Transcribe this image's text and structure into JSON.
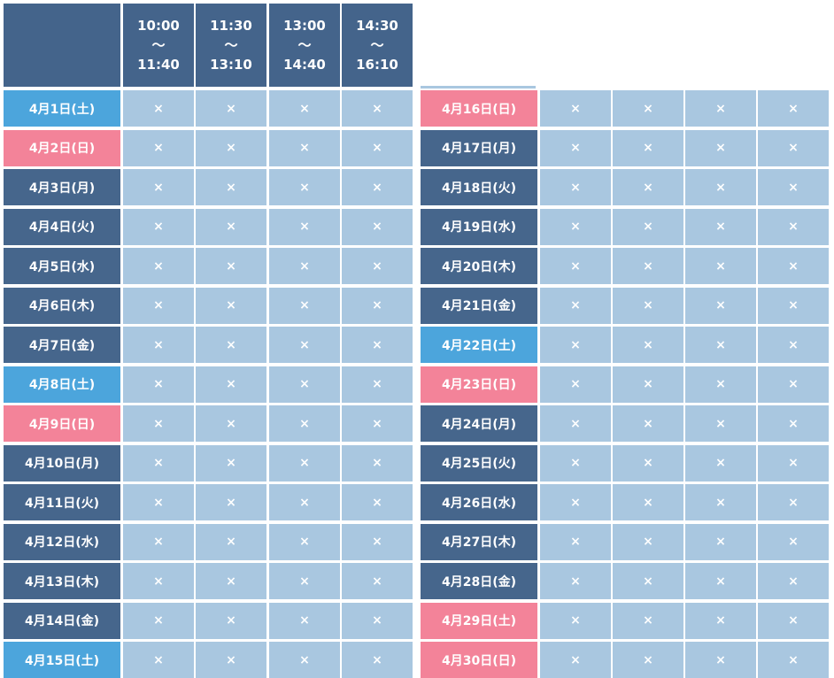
{
  "colors": {
    "header": "#3c5d86",
    "weekday": "#3c5d86",
    "saturday": "#42a0da",
    "holiday": "#f27c93",
    "slot": "#a9c7e0"
  },
  "time_slots": [
    {
      "start": "10:00",
      "sep": "〜",
      "end": "11:40"
    },
    {
      "start": "11:30",
      "sep": "〜",
      "end": "13:10"
    },
    {
      "start": "13:00",
      "sep": "〜",
      "end": "14:40"
    },
    {
      "start": "14:30",
      "sep": "〜",
      "end": "16:10"
    }
  ],
  "left_table": {
    "dates": [
      {
        "label": "4月1日(土)",
        "type": "saturday",
        "slots": [
          "×",
          "×",
          "×",
          "×"
        ]
      },
      {
        "label": "4月2日(日)",
        "type": "holiday",
        "slots": [
          "×",
          "×",
          "×",
          "×"
        ]
      },
      {
        "label": "4月3日(月)",
        "type": "weekday",
        "slots": [
          "×",
          "×",
          "×",
          "×"
        ]
      },
      {
        "label": "4月4日(火)",
        "type": "weekday",
        "slots": [
          "×",
          "×",
          "×",
          "×"
        ]
      },
      {
        "label": "4月5日(水)",
        "type": "weekday",
        "slots": [
          "×",
          "×",
          "×",
          "×"
        ]
      },
      {
        "label": "4月6日(木)",
        "type": "weekday",
        "slots": [
          "×",
          "×",
          "×",
          "×"
        ]
      },
      {
        "label": "4月7日(金)",
        "type": "weekday",
        "slots": [
          "×",
          "×",
          "×",
          "×"
        ]
      },
      {
        "label": "4月8日(土)",
        "type": "saturday",
        "slots": [
          "×",
          "×",
          "×",
          "×"
        ]
      },
      {
        "label": "4月9日(日)",
        "type": "holiday",
        "slots": [
          "×",
          "×",
          "×",
          "×"
        ]
      },
      {
        "label": "4月10日(月)",
        "type": "weekday",
        "slots": [
          "×",
          "×",
          "×",
          "×"
        ]
      },
      {
        "label": "4月11日(火)",
        "type": "weekday",
        "slots": [
          "×",
          "×",
          "×",
          "×"
        ]
      },
      {
        "label": "4月12日(水)",
        "type": "weekday",
        "slots": [
          "×",
          "×",
          "×",
          "×"
        ]
      },
      {
        "label": "4月13日(木)",
        "type": "weekday",
        "slots": [
          "×",
          "×",
          "×",
          "×"
        ]
      },
      {
        "label": "4月14日(金)",
        "type": "weekday",
        "slots": [
          "×",
          "×",
          "×",
          "×"
        ]
      },
      {
        "label": "4月15日(土)",
        "type": "saturday",
        "slots": [
          "×",
          "×",
          "×",
          "×"
        ]
      }
    ]
  },
  "right_table": {
    "dates": [
      {
        "label": "4月16日(日)",
        "type": "holiday",
        "slots": [
          "×",
          "×",
          "×",
          "×"
        ]
      },
      {
        "label": "4月17日(月)",
        "type": "weekday",
        "slots": [
          "×",
          "×",
          "×",
          "×"
        ]
      },
      {
        "label": "4月18日(火)",
        "type": "weekday",
        "slots": [
          "×",
          "×",
          "×",
          "×"
        ]
      },
      {
        "label": "4月19日(水)",
        "type": "weekday",
        "slots": [
          "×",
          "×",
          "×",
          "×"
        ]
      },
      {
        "label": "4月20日(木)",
        "type": "weekday",
        "slots": [
          "×",
          "×",
          "×",
          "×"
        ]
      },
      {
        "label": "4月21日(金)",
        "type": "weekday",
        "slots": [
          "×",
          "×",
          "×",
          "×"
        ]
      },
      {
        "label": "4月22日(土)",
        "type": "saturday",
        "slots": [
          "×",
          "×",
          "×",
          "×"
        ]
      },
      {
        "label": "4月23日(日)",
        "type": "holiday",
        "slots": [
          "×",
          "×",
          "×",
          "×"
        ]
      },
      {
        "label": "4月24日(月)",
        "type": "weekday",
        "slots": [
          "×",
          "×",
          "×",
          "×"
        ]
      },
      {
        "label": "4月25日(火)",
        "type": "weekday",
        "slots": [
          "×",
          "×",
          "×",
          "×"
        ]
      },
      {
        "label": "4月26日(水)",
        "type": "weekday",
        "slots": [
          "×",
          "×",
          "×",
          "×"
        ]
      },
      {
        "label": "4月27日(木)",
        "type": "weekday",
        "slots": [
          "×",
          "×",
          "×",
          "×"
        ]
      },
      {
        "label": "4月28日(金)",
        "type": "weekday",
        "slots": [
          "×",
          "×",
          "×",
          "×"
        ]
      },
      {
        "label": "4月29日(土)",
        "type": "holiday",
        "slots": [
          "×",
          "×",
          "×",
          "×"
        ]
      },
      {
        "label": "4月30日(日)",
        "type": "holiday",
        "slots": [
          "×",
          "×",
          "×",
          "×"
        ]
      }
    ]
  }
}
